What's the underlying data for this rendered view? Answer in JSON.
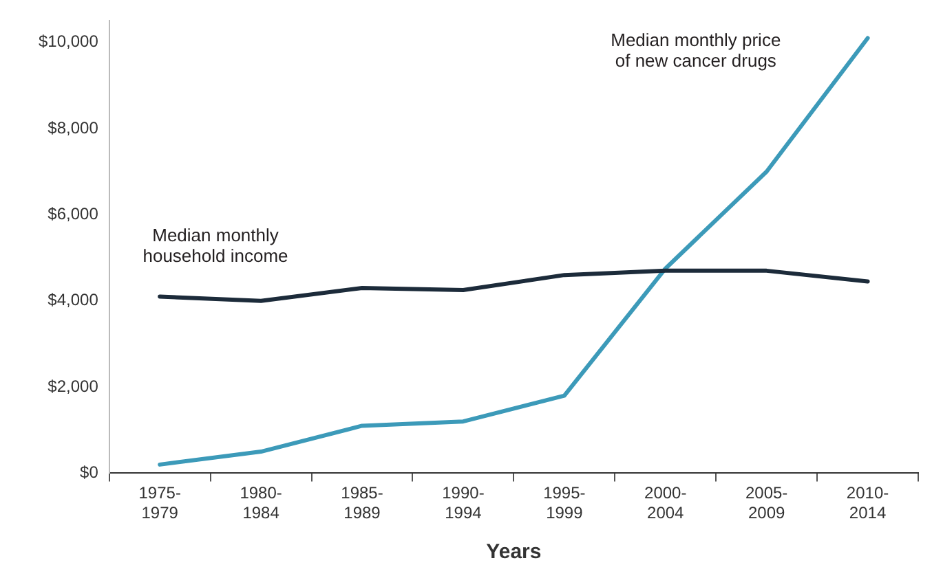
{
  "chart_data": {
    "type": "line",
    "xlabel": "Years",
    "categories": [
      "1975-1979",
      "1980-1984",
      "1985-1989",
      "1990-1994",
      "1995-1999",
      "2000-2004",
      "2005-2009",
      "2010-2014"
    ],
    "series": [
      {
        "name": "Median monthly household income",
        "color": "#1c2b3a",
        "values": [
          4100,
          4000,
          4300,
          4250,
          4600,
          4700,
          4700,
          4450
        ]
      },
      {
        "name": "Median monthly price of new cancer drugs",
        "color": "#3c9ab9",
        "values": [
          200,
          500,
          1100,
          1200,
          1800,
          4750,
          7000,
          10100
        ]
      }
    ],
    "ylim": [
      0,
      10500
    ],
    "yticks": [
      {
        "value": 0,
        "label": "$0"
      },
      {
        "value": 2000,
        "label": "$2,000"
      },
      {
        "value": 4000,
        "label": "$4,000"
      },
      {
        "value": 6000,
        "label": "$6,000"
      },
      {
        "value": 8000,
        "label": "$8,000"
      },
      {
        "value": 10000,
        "label": "$10,000"
      }
    ],
    "grid": false,
    "legend": false,
    "marker": "none",
    "line_style": "solid"
  }
}
